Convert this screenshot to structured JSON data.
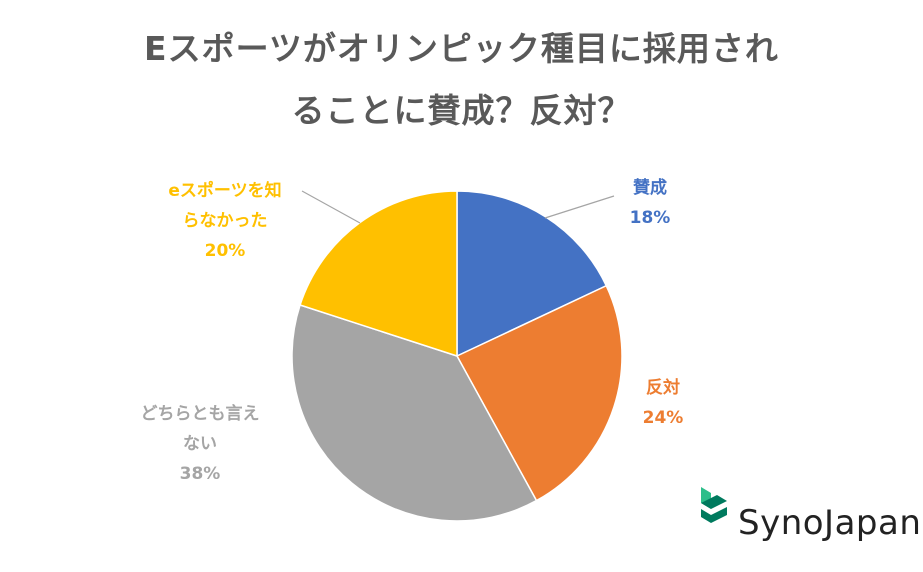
{
  "chart_data": {
    "type": "pie",
    "title_lines": [
      "Eスポーツがオリンピック種目に採用され",
      "ることに賛成？反対？"
    ],
    "slices": [
      {
        "name": "賛成",
        "value": 18,
        "display": "18%",
        "color": "#4472C4"
      },
      {
        "name": "反対",
        "value": 24,
        "display": "24%",
        "color": "#ED7D31"
      },
      {
        "name": "どちらとも言えない",
        "name_lines": [
          "どちらとも言え",
          "ない"
        ],
        "value": 38,
        "display": "38%",
        "color": "#A5A5A5"
      },
      {
        "name": "eスポーツを知らなかった",
        "name_lines": [
          "eスポーツを知",
          "らなかった"
        ],
        "value": 20,
        "display": "20%",
        "color": "#FFC000"
      }
    ],
    "start_angle": "12 o'clock",
    "direction": "clockwise",
    "label_color": {
      "反対": "#ED7D31",
      "賛成": "#4472C4",
      "どちらとも言えない": "#A5A5A5",
      "eスポーツを知らなかった": "#FFC000"
    }
  },
  "branding": {
    "logo_text": "SynoJapan",
    "colors": {
      "dark_green": "#007A5E",
      "light_green": "#2DBE8A"
    }
  }
}
